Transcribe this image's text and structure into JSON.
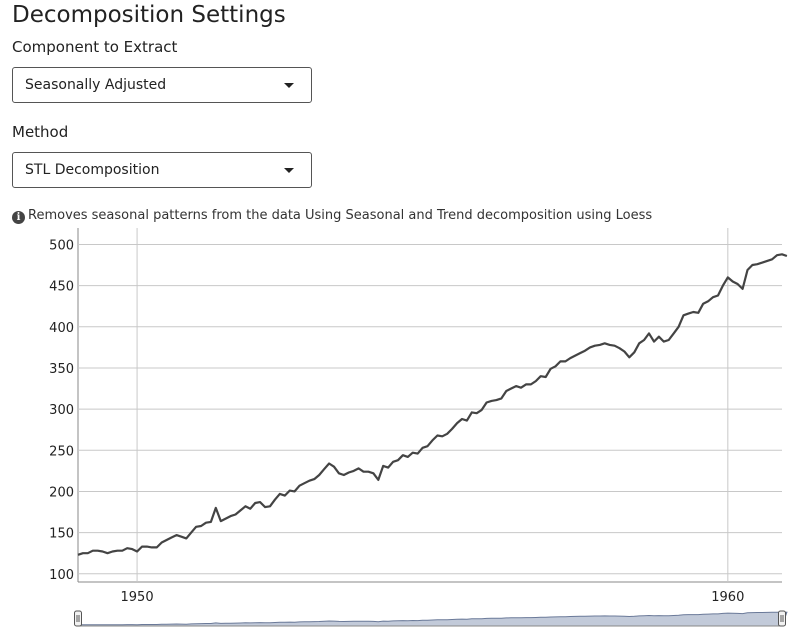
{
  "settings": {
    "title": "Decomposition Settings",
    "component_label": "Component to Extract",
    "component_value": "Seasonally Adjusted",
    "method_label": "Method",
    "method_value": "STL Decomposition",
    "help_text": "Removes seasonal patterns from the data Using Seasonal and Trend decomposition using Loess"
  },
  "icons": {
    "info": "info-circle-icon",
    "dropdown": "caret-down-icon",
    "range_handle": "range-handle-icon"
  },
  "colors": {
    "line": "#444444",
    "grid": "#c8c8c8",
    "navigator_fill": "#a8b3c9",
    "navigator_line": "#6b7a99"
  },
  "chart_data": {
    "type": "line",
    "title": "",
    "xlabel": "",
    "ylabel": "",
    "x_ticks": [
      "1950",
      "1960"
    ],
    "y_ticks": [
      100,
      150,
      200,
      250,
      300,
      350,
      400,
      450,
      500
    ],
    "ylim": [
      90,
      520
    ],
    "xlim": [
      1949.0,
      1960.917
    ],
    "grid": true,
    "legend": "none",
    "range_selector": true,
    "series": [
      {
        "x_start": 1949.0,
        "x_step": 0.08333,
        "values": [
          123,
          125,
          125,
          128,
          128,
          127,
          125,
          127,
          128,
          128,
          131,
          130,
          127,
          133,
          133,
          132,
          132,
          138,
          141,
          144,
          147,
          145,
          143,
          150,
          157,
          158,
          162,
          163,
          180,
          164,
          167,
          170,
          172,
          177,
          182,
          179,
          186,
          187,
          181,
          182,
          190,
          197,
          195,
          201,
          200,
          207,
          210,
          213,
          215,
          220,
          227,
          234,
          230,
          222,
          220,
          223,
          225,
          228,
          224,
          224,
          222,
          214,
          231,
          229,
          236,
          238,
          244,
          242,
          247,
          246,
          253,
          255,
          262,
          268,
          267,
          270,
          276,
          283,
          288,
          286,
          296,
          295,
          299,
          308,
          310,
          311,
          313,
          322,
          325,
          328,
          326,
          330,
          330,
          334,
          340,
          339,
          349,
          352,
          358,
          358,
          362,
          365,
          368,
          371,
          375,
          377,
          378,
          380,
          378,
          377,
          374,
          370,
          363,
          369,
          380,
          384,
          392,
          382,
          388,
          382,
          384,
          392,
          400,
          414,
          416,
          418,
          417,
          428,
          431,
          436,
          438,
          450,
          460,
          455,
          452,
          446,
          469,
          475,
          476,
          478,
          480,
          482,
          487,
          488,
          486
        ]
      }
    ],
    "navigator_range": [
      1949.0,
      1960.917
    ]
  }
}
